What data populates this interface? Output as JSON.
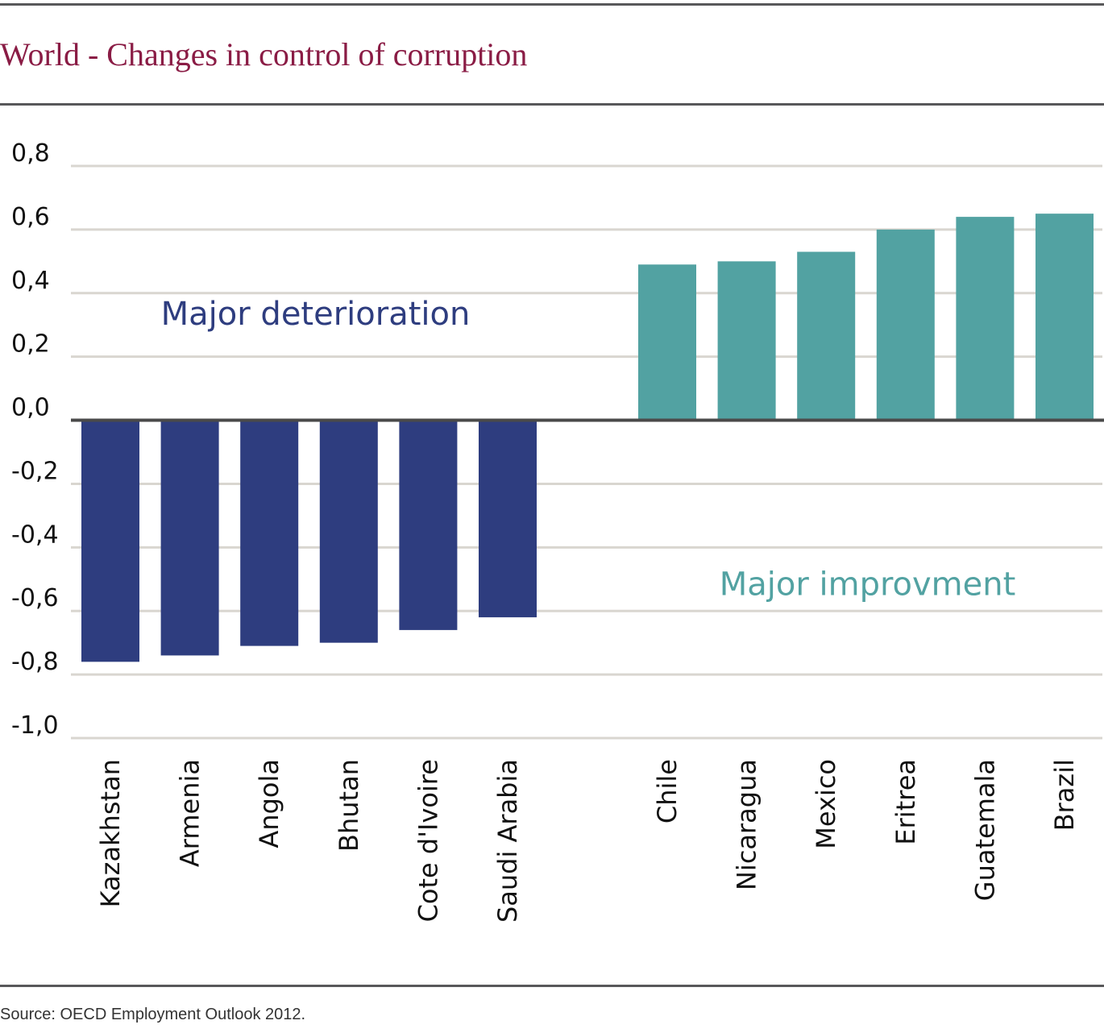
{
  "title": "World - Changes in control of corruption",
  "source": "Source: OECD Employment Outlook 2012.",
  "colors": {
    "title": "#8a1c45",
    "deterioration": "#2e3d7f",
    "improvement": "#52a2a2",
    "grid": "#d9d6d0",
    "baseline": "#4a4a4a"
  },
  "chart_data": {
    "type": "bar",
    "ylim": [
      -1.0,
      0.8
    ],
    "yticks": [
      0.8,
      0.6,
      0.4,
      0.2,
      0.0,
      -0.2,
      -0.4,
      -0.6,
      -0.8,
      -1.0
    ],
    "ytick_labels": [
      "0,8",
      "0,6",
      "0,4",
      "0,2",
      "0,0",
      "-0,2",
      "-0,4",
      "-0,6",
      "-0,8",
      "-1,0"
    ],
    "grid": true,
    "series": [
      {
        "name": "Major deterioration",
        "color": "#2e3d7f",
        "categories": [
          "Kazakhstan",
          "Armenia",
          "Angola",
          "Bhutan",
          "Cote d'Ivoire",
          "Saudi Arabia"
        ],
        "values": [
          -0.76,
          -0.74,
          -0.71,
          -0.7,
          -0.66,
          -0.62
        ]
      },
      {
        "name": "Major improvment",
        "color": "#52a2a2",
        "categories": [
          "Chile",
          "Nicaragua",
          "Mexico",
          "Eritrea",
          "Guatemala",
          "Brazil"
        ],
        "values": [
          0.49,
          0.5,
          0.53,
          0.6,
          0.64,
          0.65
        ]
      }
    ],
    "annotations": [
      {
        "text": "Major deterioration",
        "series": 0
      },
      {
        "text": "Major improvment",
        "series": 1
      }
    ]
  }
}
